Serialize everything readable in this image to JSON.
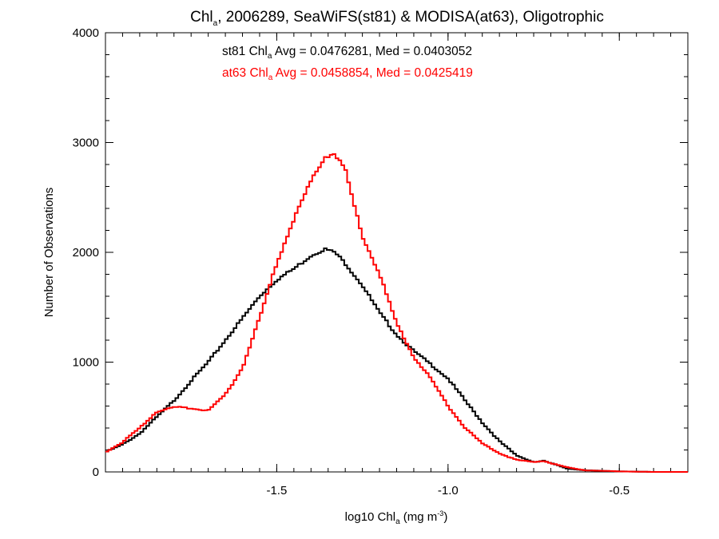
{
  "chart_data": {
    "type": "line",
    "title": {
      "pre": "Chl",
      "sub": "a",
      "post": ", 2006289, SeaWiFS(st81) & MODISA(at63), Oligotrophic"
    },
    "xlabel": {
      "pre": "log10 Chl",
      "sub": "a",
      "mid": " (mg m",
      "sup": "-3",
      "post": ")"
    },
    "ylabel": "Number of Observations",
    "xlim": [
      -2.0,
      -0.3
    ],
    "ylim": [
      0,
      4000
    ],
    "xticks": [
      {
        "value": -1.5,
        "label": "-1.5"
      },
      {
        "value": -1.0,
        "label": "-1.0"
      },
      {
        "value": -0.5,
        "label": "-0.5"
      }
    ],
    "yticks": [
      {
        "value": 0,
        "label": "0"
      },
      {
        "value": 1000,
        "label": "1000"
      },
      {
        "value": 2000,
        "label": "2000"
      },
      {
        "value": 3000,
        "label": "3000"
      },
      {
        "value": 4000,
        "label": "4000"
      }
    ],
    "grid": false,
    "annotations": [
      {
        "pre": "st81 Chl",
        "sub": "a",
        "post": " Avg = 0.0476281, Med = 0.0403052",
        "color": "#000000"
      },
      {
        "pre": "at63 Chl",
        "sub": "a",
        "post": " Avg = 0.0458854, Med = 0.0425419",
        "color": "#ff0000"
      }
    ],
    "series": [
      {
        "color": "#000000",
        "x": [
          -2.0,
          -1.95,
          -1.9,
          -1.85,
          -1.8,
          -1.75,
          -1.7,
          -1.65,
          -1.6,
          -1.55,
          -1.5,
          -1.45,
          -1.4,
          -1.36,
          -1.33,
          -1.3,
          -1.25,
          -1.2,
          -1.15,
          -1.1,
          -1.05,
          -1.0,
          -0.95,
          -0.9,
          -0.85,
          -0.8,
          -0.75,
          -0.72,
          -0.7,
          -0.65,
          -0.6,
          -0.5,
          -0.4,
          -0.3
        ],
        "values": [
          180,
          250,
          350,
          500,
          650,
          830,
          1000,
          1200,
          1400,
          1600,
          1750,
          1850,
          1970,
          2030,
          2000,
          1900,
          1700,
          1450,
          1250,
          1100,
          980,
          850,
          650,
          450,
          280,
          150,
          90,
          100,
          80,
          30,
          15,
          5,
          0,
          0
        ]
      },
      {
        "color": "#ff0000",
        "x": [
          -2.0,
          -1.95,
          -1.9,
          -1.85,
          -1.8,
          -1.75,
          -1.7,
          -1.65,
          -1.6,
          -1.55,
          -1.5,
          -1.45,
          -1.4,
          -1.36,
          -1.33,
          -1.3,
          -1.28,
          -1.25,
          -1.2,
          -1.15,
          -1.1,
          -1.05,
          -1.0,
          -0.95,
          -0.9,
          -0.85,
          -0.8,
          -0.75,
          -0.72,
          -0.7,
          -0.65,
          -0.6,
          -0.5,
          -0.4,
          -0.3
        ],
        "values": [
          180,
          270,
          400,
          550,
          590,
          580,
          560,
          700,
          950,
          1400,
          1900,
          2300,
          2650,
          2870,
          2900,
          2750,
          2500,
          2150,
          1800,
          1350,
          1050,
          850,
          600,
          400,
          260,
          170,
          110,
          90,
          100,
          80,
          40,
          15,
          5,
          0,
          0
        ]
      }
    ]
  }
}
